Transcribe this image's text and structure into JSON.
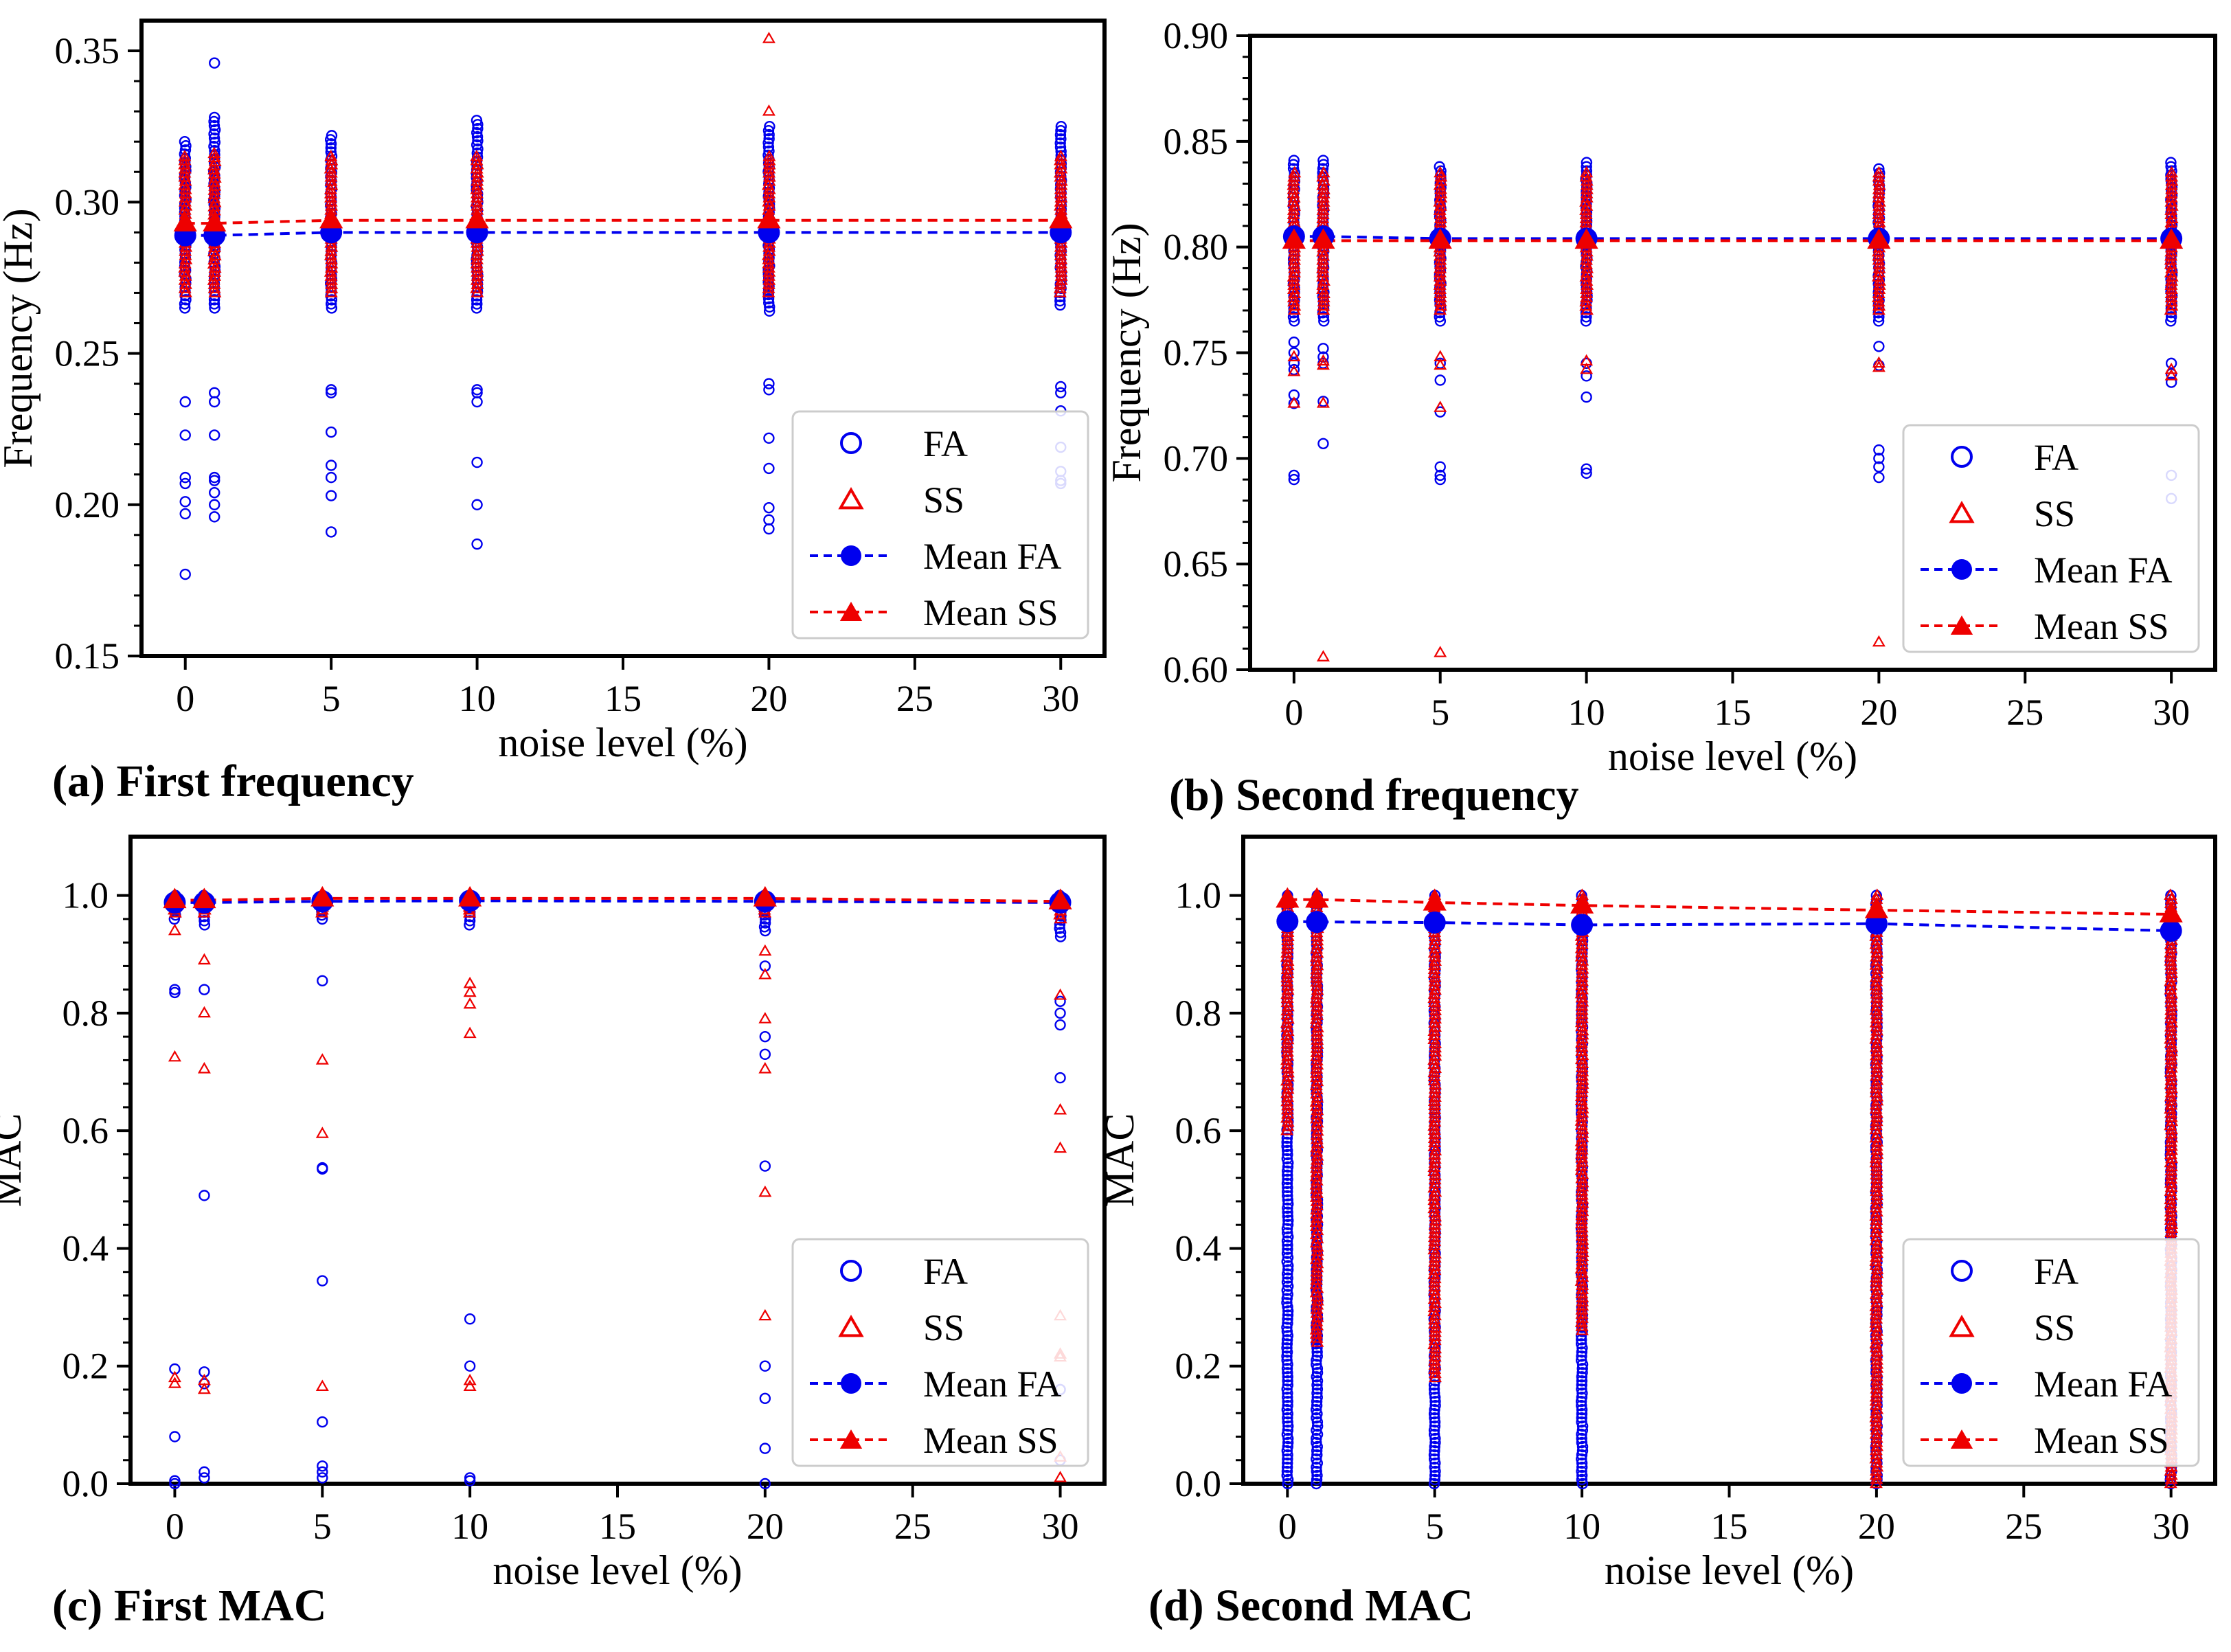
{
  "figure": {
    "captions": [
      "(a) First frequency",
      "(b) Second frequency",
      "(c) First MAC",
      "(d) Second MAC"
    ]
  },
  "colors": {
    "fa": "#0000ee",
    "ss": "#ee0000",
    "axis": "#000000"
  },
  "chart_data": [
    {
      "id": "a",
      "type": "scatter",
      "title": "(a) First frequency",
      "xlabel": "noise level (%)",
      "ylabel": "Frequency (Hz)",
      "xlim": [
        -1.5,
        31.5
      ],
      "ylim": [
        0.15,
        0.36
      ],
      "xticks": [
        0,
        5,
        10,
        15,
        20,
        25,
        30
      ],
      "yticks": [
        0.15,
        0.2,
        0.25,
        0.3,
        0.35
      ],
      "ytick_labels": [
        "0.15",
        "0.20",
        "0.25",
        "0.30",
        "0.35"
      ],
      "xtick_labels": [
        "0",
        "5",
        "10",
        "15",
        "20",
        "25",
        "30"
      ],
      "legend": {
        "position": "lower-right",
        "entries": [
          "FA",
          "SS",
          "Mean FA",
          "Mean SS"
        ]
      },
      "x": [
        0,
        1,
        5,
        10,
        20,
        30
      ],
      "series": [
        {
          "name": "Mean FA",
          "values": [
            0.289,
            0.289,
            0.29,
            0.29,
            0.29,
            0.29
          ]
        },
        {
          "name": "Mean SS",
          "values": [
            0.293,
            0.293,
            0.294,
            0.294,
            0.294,
            0.294
          ]
        }
      ],
      "scatter": {
        "FA": {
          "band": [
            [
              0.265,
              0.32
            ],
            [
              0.265,
              0.328
            ],
            [
              0.265,
              0.322
            ],
            [
              0.265,
              0.327
            ],
            [
              0.264,
              0.325
            ],
            [
              0.266,
              0.325
            ]
          ],
          "outliers": [
            [
              0.177,
              0.197,
              0.201,
              0.207,
              0.209,
              0.223,
              0.234
            ],
            [
              0.196,
              0.2,
              0.204,
              0.208,
              0.209,
              0.223,
              0.234,
              0.237,
              0.346
            ],
            [
              0.191,
              0.203,
              0.209,
              0.213,
              0.224,
              0.237,
              0.238
            ],
            [
              0.187,
              0.2,
              0.214,
              0.234,
              0.237,
              0.238
            ],
            [
              0.192,
              0.195,
              0.199,
              0.212,
              0.222,
              0.238,
              0.24
            ],
            [
              0.207,
              0.208,
              0.211,
              0.219,
              0.231,
              0.237,
              0.239
            ]
          ]
        },
        "SS": {
          "band": [
            [
              0.27,
              0.315
            ],
            [
              0.27,
              0.316
            ],
            [
              0.27,
              0.315
            ],
            [
              0.27,
              0.315
            ],
            [
              0.27,
              0.315
            ],
            [
              0.27,
              0.315
            ]
          ],
          "outliers": [
            [],
            [],
            [],
            [],
            [
              0.33,
              0.354
            ],
            []
          ]
        }
      }
    },
    {
      "id": "b",
      "type": "scatter",
      "title": "(b) Second frequency",
      "xlabel": "noise level (%)",
      "ylabel": "Frequency (Hz)",
      "xlim": [
        -1.5,
        31.5
      ],
      "ylim": [
        0.6,
        0.9
      ],
      "xticks": [
        0,
        5,
        10,
        15,
        20,
        25,
        30
      ],
      "yticks": [
        0.6,
        0.65,
        0.7,
        0.75,
        0.8,
        0.85,
        0.9
      ],
      "ytick_labels": [
        "0.60",
        "0.65",
        "0.70",
        "0.75",
        "0.80",
        "0.85",
        "0.90"
      ],
      "xtick_labels": [
        "0",
        "5",
        "10",
        "15",
        "20",
        "25",
        "30"
      ],
      "legend": {
        "position": "lower-right",
        "entries": [
          "FA",
          "SS",
          "Mean FA",
          "Mean SS"
        ]
      },
      "x": [
        0,
        1,
        5,
        10,
        20,
        30
      ],
      "series": [
        {
          "name": "Mean FA",
          "values": [
            0.805,
            0.805,
            0.804,
            0.804,
            0.804,
            0.804
          ]
        },
        {
          "name": "Mean SS",
          "values": [
            0.803,
            0.803,
            0.803,
            0.803,
            0.803,
            0.803
          ]
        }
      ],
      "scatter": {
        "FA": {
          "band": [
            [
              0.765,
              0.841
            ],
            [
              0.765,
              0.841
            ],
            [
              0.765,
              0.838
            ],
            [
              0.765,
              0.84
            ],
            [
              0.765,
              0.837
            ],
            [
              0.765,
              0.84
            ]
          ],
          "outliers": [
            [
              0.69,
              0.692,
              0.726,
              0.73,
              0.742,
              0.745,
              0.75,
              0.755
            ],
            [
              0.707,
              0.727,
              0.745,
              0.748,
              0.752
            ],
            [
              0.69,
              0.692,
              0.696,
              0.722,
              0.737,
              0.745
            ],
            [
              0.693,
              0.695,
              0.729,
              0.739,
              0.745
            ],
            [
              0.691,
              0.696,
              0.7,
              0.704,
              0.744,
              0.753
            ],
            [
              0.681,
              0.692,
              0.736,
              0.74,
              0.745
            ]
          ]
        },
        "SS": {
          "band": [
            [
              0.77,
              0.835
            ],
            [
              0.77,
              0.835
            ],
            [
              0.77,
              0.835
            ],
            [
              0.77,
              0.835
            ],
            [
              0.77,
              0.835
            ],
            [
              0.77,
              0.835
            ]
          ],
          "outliers": [
            [
              0.726,
              0.741,
              0.748
            ],
            [
              0.606,
              0.726,
              0.744,
              0.746
            ],
            [
              0.608,
              0.724,
              0.744,
              0.748
            ],
            [
              0.742,
              0.746
            ],
            [
              0.613,
              0.743,
              0.745,
              0.772
            ],
            [
              0.739,
              0.742
            ]
          ]
        }
      }
    },
    {
      "id": "c",
      "type": "scatter",
      "title": "(c) First MAC",
      "xlabel": "noise level (%)",
      "ylabel": "MAC",
      "xlim": [
        -1.5,
        31.5
      ],
      "ylim": [
        0.0,
        1.1
      ],
      "xticks": [
        0,
        5,
        10,
        15,
        20,
        25,
        30
      ],
      "yticks": [
        0.0,
        0.2,
        0.4,
        0.6,
        0.8,
        1.0
      ],
      "ytick_labels": [
        "0.0",
        "0.2",
        "0.4",
        "0.6",
        "0.8",
        "1.0"
      ],
      "xtick_labels": [
        "0",
        "5",
        "10",
        "15",
        "20",
        "25",
        "30"
      ],
      "legend": {
        "position": "lower-right",
        "entries": [
          "FA",
          "SS",
          "Mean FA",
          "Mean SS"
        ]
      },
      "x": [
        0,
        1,
        5,
        10,
        20,
        30
      ],
      "series": [
        {
          "name": "Mean FA",
          "values": [
            0.988,
            0.988,
            0.99,
            0.991,
            0.99,
            0.988
          ]
        },
        {
          "name": "Mean SS",
          "values": [
            0.992,
            0.992,
            0.995,
            0.995,
            0.995,
            0.99
          ]
        }
      ],
      "scatter": {
        "FA": {
          "band": [
            [
              0.96,
              1.0
            ],
            [
              0.95,
              1.0
            ],
            [
              0.96,
              1.0
            ],
            [
              0.95,
              1.0
            ],
            [
              0.94,
              1.0
            ],
            [
              0.93,
              1.0
            ]
          ],
          "outliers": [
            [
              0.0,
              0.005,
              0.08,
              0.195,
              0.835,
              0.84
            ],
            [
              0.01,
              0.02,
              0.17,
              0.19,
              0.49,
              0.84
            ],
            [
              0.01,
              0.02,
              0.03,
              0.105,
              0.345,
              0.535,
              0.537,
              0.855
            ],
            [
              0.005,
              0.01,
              0.2,
              0.28
            ],
            [
              0.0,
              0.06,
              0.145,
              0.2,
              0.54,
              0.73,
              0.76,
              0.88
            ],
            [
              0.04,
              0.16,
              0.16,
              0.69,
              0.78,
              0.8,
              0.82
            ]
          ]
        },
        "SS": {
          "band": [
            [
              0.97,
              1.0
            ],
            [
              0.97,
              1.0
            ],
            [
              0.97,
              1.0
            ],
            [
              0.97,
              1.0
            ],
            [
              0.97,
              1.0
            ],
            [
              0.96,
              1.0
            ]
          ],
          "outliers": [
            [
              0.17,
              0.18,
              0.725,
              0.94
            ],
            [
              0.16,
              0.175,
              0.705,
              0.8,
              0.89
            ],
            [
              0.165,
              0.595,
              0.72
            ],
            [
              0.165,
              0.175,
              0.765,
              0.815,
              0.835,
              0.85
            ],
            [
              0.285,
              0.495,
              0.705,
              0.79,
              0.865,
              0.905
            ],
            [
              0.01,
              0.045,
              0.215,
              0.22,
              0.285,
              0.57,
              0.635,
              0.83
            ]
          ]
        }
      }
    },
    {
      "id": "d",
      "type": "scatter",
      "title": "(d) Second MAC",
      "xlabel": "noise level (%)",
      "ylabel": "MAC",
      "xlim": [
        -1.5,
        31.5
      ],
      "ylim": [
        0.0,
        1.1
      ],
      "xticks": [
        0,
        5,
        10,
        15,
        20,
        25,
        30
      ],
      "yticks": [
        0.0,
        0.2,
        0.4,
        0.6,
        0.8,
        1.0
      ],
      "ytick_labels": [
        "0.0",
        "0.2",
        "0.4",
        "0.6",
        "0.8",
        "1.0"
      ],
      "xtick_labels": [
        "0",
        "5",
        "10",
        "15",
        "20",
        "25",
        "30"
      ],
      "legend": {
        "position": "lower-right",
        "entries": [
          "FA",
          "SS",
          "Mean FA",
          "Mean SS"
        ]
      },
      "x": [
        0,
        1,
        5,
        10,
        20,
        30
      ],
      "series": [
        {
          "name": "Mean FA",
          "values": [
            0.956,
            0.955,
            0.954,
            0.95,
            0.952,
            0.94
          ]
        },
        {
          "name": "Mean SS",
          "values": [
            0.993,
            0.993,
            0.988,
            0.983,
            0.975,
            0.968
          ]
        }
      ],
      "scatter": {
        "FA": {
          "band": [
            [
              0.0,
              1.0
            ],
            [
              0.0,
              1.0
            ],
            [
              0.0,
              1.0
            ],
            [
              0.0,
              1.0
            ],
            [
              0.0,
              1.0
            ],
            [
              0.0,
              1.0
            ]
          ],
          "outliers": [
            [],
            [],
            [],
            [],
            [],
            []
          ]
        },
        "SS": {
          "band": [
            [
              0.6,
              1.0
            ],
            [
              0.24,
              1.0
            ],
            [
              0.18,
              1.0
            ],
            [
              0.26,
              1.0
            ],
            [
              0.0,
              1.0
            ],
            [
              0.0,
              1.0
            ]
          ],
          "outliers": [
            [],
            [],
            [],
            [],
            [],
            []
          ]
        }
      }
    }
  ]
}
